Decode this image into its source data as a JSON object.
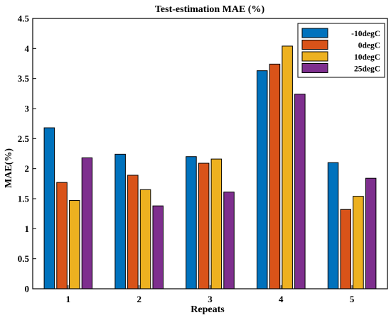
{
  "chart_data": {
    "type": "bar",
    "title": "Test-estimation MAE (%)",
    "xlabel": "Repeats",
    "ylabel": "MAE(%)",
    "categories": [
      "1",
      "2",
      "3",
      "4",
      "5"
    ],
    "ylim": [
      0,
      4.5
    ],
    "yticks": [
      "0",
      "0.5",
      "1",
      "1.5",
      "2",
      "2.5",
      "3",
      "3.5",
      "4",
      "4.5"
    ],
    "grid": false,
    "legend_position": "top-right",
    "series": [
      {
        "name": "-10degC",
        "color": "#0072bd",
        "values": [
          2.68,
          2.24,
          2.2,
          3.63,
          2.1
        ]
      },
      {
        "name": "0degC",
        "color": "#d95319",
        "values": [
          1.77,
          1.89,
          2.09,
          3.74,
          1.32
        ]
      },
      {
        "name": "10degC",
        "color": "#edb120",
        "values": [
          1.47,
          1.65,
          2.16,
          4.04,
          1.54
        ]
      },
      {
        "name": "25degC",
        "color": "#7e2f8e",
        "values": [
          2.18,
          1.38,
          1.61,
          3.24,
          1.84
        ]
      }
    ]
  }
}
